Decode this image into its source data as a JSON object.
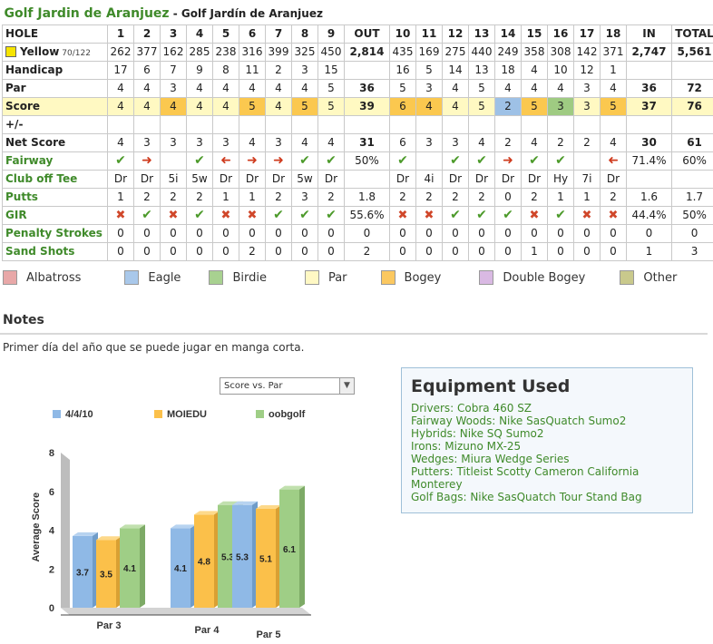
{
  "header": {
    "course": "Golf Jardin de Aranjuez",
    "course_full": "Golf Jardín de Aranjuez"
  },
  "scorecard": {
    "hole_label": "HOLE",
    "holes": [
      "1",
      "2",
      "3",
      "4",
      "5",
      "6",
      "7",
      "8",
      "9",
      "OUT",
      "10",
      "11",
      "12",
      "13",
      "14",
      "15",
      "16",
      "17",
      "18",
      "IN",
      "TOTAL"
    ],
    "tee": {
      "name": "Yellow",
      "rating": "70/122"
    },
    "rows": [
      {
        "label": "",
        "values": [
          "262",
          "377",
          "162",
          "285",
          "238",
          "316",
          "399",
          "325",
          "450",
          "2,814",
          "435",
          "169",
          "275",
          "440",
          "249",
          "358",
          "308",
          "142",
          "371",
          "2,747",
          "5,561"
        ]
      },
      {
        "label": "Handicap",
        "values": [
          "17",
          "6",
          "7",
          "9",
          "8",
          "11",
          "2",
          "3",
          "15",
          "",
          "16",
          "5",
          "14",
          "13",
          "18",
          "4",
          "10",
          "12",
          "1",
          "",
          ""
        ]
      },
      {
        "label": "Par",
        "values": [
          "4",
          "4",
          "3",
          "4",
          "4",
          "4",
          "4",
          "4",
          "5",
          "36",
          "5",
          "3",
          "4",
          "5",
          "4",
          "4",
          "4",
          "3",
          "4",
          "36",
          "72"
        ]
      },
      {
        "label": "Score",
        "values": [
          "4",
          "4",
          "4",
          "4",
          "4",
          "5",
          "4",
          "5",
          "5",
          "39",
          "6",
          "4",
          "4",
          "5",
          "2",
          "5",
          "3",
          "3",
          "5",
          "37",
          "76"
        ]
      },
      {
        "label": "+/-",
        "values": [
          "",
          "",
          "",
          "",
          "",
          "",
          "",
          "",
          "",
          "",
          "",
          "",
          "",
          "",
          "",
          "",
          "",
          "",
          "",
          "",
          ""
        ]
      },
      {
        "label": "Net Score",
        "values": [
          "4",
          "3",
          "3",
          "3",
          "3",
          "4",
          "3",
          "4",
          "4",
          "31",
          "6",
          "3",
          "3",
          "4",
          "2",
          "4",
          "2",
          "2",
          "4",
          "30",
          "61"
        ]
      },
      {
        "label": "Fairway",
        "values": [
          "check",
          "arrow-right",
          "",
          "check",
          "arrow-left",
          "arrow-right",
          "arrow-right",
          "check",
          "check",
          "50%",
          "check",
          "",
          "check",
          "check",
          "arrow-right",
          "check",
          "check",
          "",
          "arrow-left",
          "71.4%",
          "60%"
        ]
      },
      {
        "label": "Club off Tee",
        "values": [
          "Dr",
          "Dr",
          "5i",
          "5w",
          "Dr",
          "Dr",
          "Dr",
          "5w",
          "Dr",
          "",
          "Dr",
          "4i",
          "Dr",
          "Dr",
          "Dr",
          "Dr",
          "Hy",
          "7i",
          "Dr",
          "",
          ""
        ]
      },
      {
        "label": "Putts",
        "values": [
          "1",
          "2",
          "2",
          "2",
          "1",
          "1",
          "2",
          "3",
          "2",
          "1.8",
          "2",
          "2",
          "2",
          "2",
          "0",
          "2",
          "1",
          "1",
          "2",
          "1.6",
          "1.7"
        ]
      },
      {
        "label": "GIR",
        "values": [
          "cross",
          "check",
          "cross",
          "check",
          "cross",
          "cross",
          "check",
          "check",
          "check",
          "55.6%",
          "cross",
          "cross",
          "check",
          "check",
          "check",
          "cross",
          "check",
          "cross",
          "cross",
          "44.4%",
          "50%"
        ]
      },
      {
        "label": "Penalty Strokes",
        "values": [
          "0",
          "0",
          "0",
          "0",
          "0",
          "0",
          "0",
          "0",
          "0",
          "0",
          "0",
          "0",
          "0",
          "0",
          "0",
          "0",
          "0",
          "0",
          "0",
          "0",
          "0"
        ]
      },
      {
        "label": "Sand Shots",
        "values": [
          "0",
          "0",
          "0",
          "0",
          "0",
          "2",
          "0",
          "0",
          "0",
          "2",
          "0",
          "0",
          "0",
          "0",
          "0",
          "1",
          "0",
          "0",
          "0",
          "1",
          "3"
        ]
      }
    ]
  },
  "legend": [
    {
      "label": "Albatross",
      "color": "#e8a8a8"
    },
    {
      "label": "Eagle",
      "color": "#a9c8ea"
    },
    {
      "label": "Birdie",
      "color": "#a8d190"
    },
    {
      "label": "Par",
      "color": "#fff8c4"
    },
    {
      "label": "Bogey",
      "color": "#fbc860"
    },
    {
      "label": "Double Bogey",
      "color": "#d9b9e3"
    },
    {
      "label": "Other",
      "color": "#c9c98c"
    }
  ],
  "notes": {
    "heading": "Notes",
    "text": "Primer día del año que se puede jugar en manga corta."
  },
  "chart_select": {
    "value": "Score vs. Par"
  },
  "equipment": {
    "heading": "Equipment Used",
    "items": [
      "Drivers: Cobra 460 SZ",
      "Fairway Woods: Nike SasQuatch Sumo2",
      "Hybrids: Nike SQ Sumo2",
      "Irons: Mizuno MX-25",
      "Wedges: Miura Wedge Series",
      "Putters: Titleist Scotty Cameron California Monterey",
      "Golf Bags: Nike SasQuatch Tour Stand Bag"
    ]
  },
  "chart_data": {
    "type": "bar",
    "categories": [
      "Par 3",
      "Par 4",
      "Par 5"
    ],
    "series": [
      {
        "name": "4/4/10",
        "values": [
          3.7,
          4.1,
          5.3
        ],
        "color": "#8fb9e6"
      },
      {
        "name": "MOIEDU",
        "values": [
          3.5,
          4.8,
          5.1
        ],
        "color": "#fbc04a"
      },
      {
        "name": "oobgolf",
        "values": [
          4.1,
          5.3,
          6.1
        ],
        "color": "#9fce86"
      }
    ],
    "ylabel": "Average Score",
    "yticks": [
      "0",
      "2",
      "4",
      "6",
      "8"
    ],
    "ylim": [
      0,
      8
    ]
  }
}
